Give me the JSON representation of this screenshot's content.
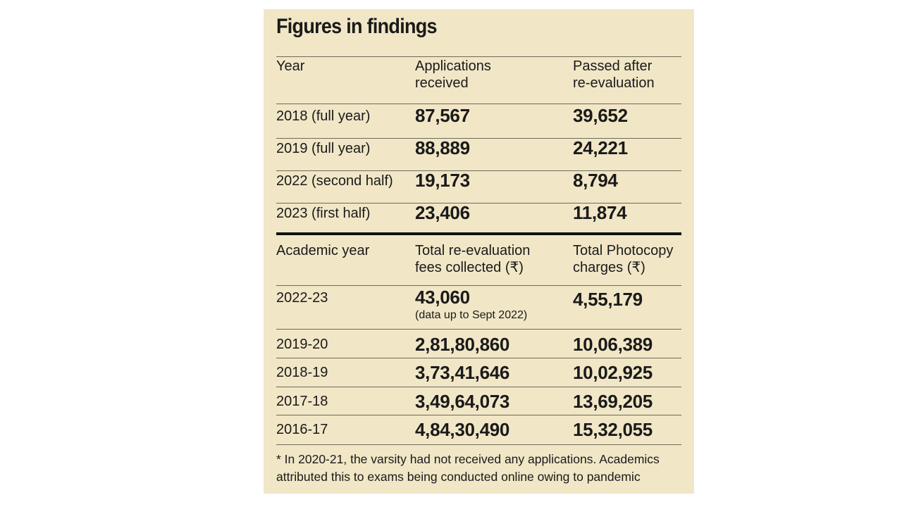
{
  "title": "Figures in findings",
  "table1": {
    "headers": [
      "Year",
      "Applications received",
      "Passed after re-evaluation"
    ],
    "header_lines": [
      [
        "Year"
      ],
      [
        "Applications",
        "received"
      ],
      [
        "Passed after",
        "re-evaluation"
      ]
    ],
    "rows": [
      {
        "year": "2018 (full year)",
        "applications": "87,567",
        "passed": "39,652"
      },
      {
        "year": "2019 (full year)",
        "applications": "88,889",
        "passed": "24,221"
      },
      {
        "year": "2022 (second half)",
        "applications": "19,173",
        "passed": "8,794"
      },
      {
        "year": "2023 (first half)",
        "applications": "23,406",
        "passed": "11,874"
      }
    ]
  },
  "table2": {
    "header_lines": [
      [
        "Academic year"
      ],
      [
        "Total re-evaluation",
        "fees collected (₹)"
      ],
      [
        "Total Photocopy",
        "charges (₹)"
      ]
    ],
    "rows": [
      {
        "year": "2022-23",
        "fees": "43,060",
        "note": "(data up to Sept 2022)",
        "photocopy": "4,55,179"
      },
      {
        "year": "2019-20",
        "fees": "2,81,80,860",
        "photocopy": "10,06,389"
      },
      {
        "year": "2018-19",
        "fees": "3,73,41,646",
        "photocopy": "10,02,925"
      },
      {
        "year": "2017-18",
        "fees": "3,49,64,073",
        "photocopy": "13,69,205"
      },
      {
        "year": "2016-17",
        "fees": "4,84,30,490",
        "photocopy": "15,32,055"
      }
    ]
  },
  "footnote": "* In 2020-21, the varsity had not received any applications. Academics attributed this to exams being conducted online owing to pandemic"
}
